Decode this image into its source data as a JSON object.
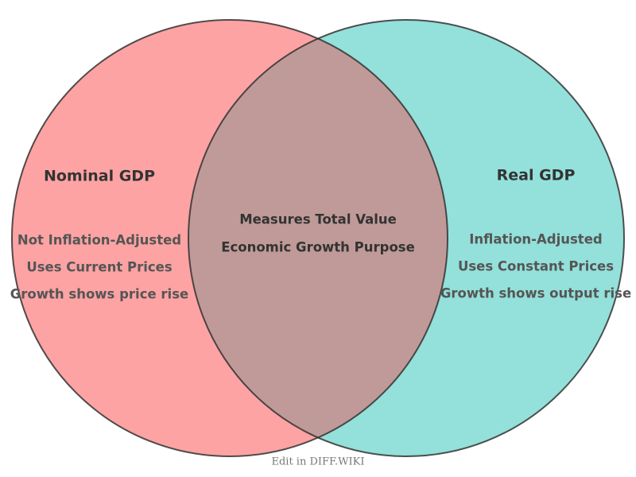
{
  "left": {
    "title": "Nominal GDP",
    "items": [
      "Not Inflation-Adjusted",
      "Uses Current Prices",
      "Growth shows price rise"
    ]
  },
  "right": {
    "title": "Real GDP",
    "items": [
      "Inflation-Adjusted",
      "Uses Constant Prices",
      "Growth shows output rise"
    ]
  },
  "intersection": {
    "items": [
      "Measures Total Value",
      "Economic Growth Purpose"
    ]
  },
  "footer": "Edit in DIFF.WIKI"
}
